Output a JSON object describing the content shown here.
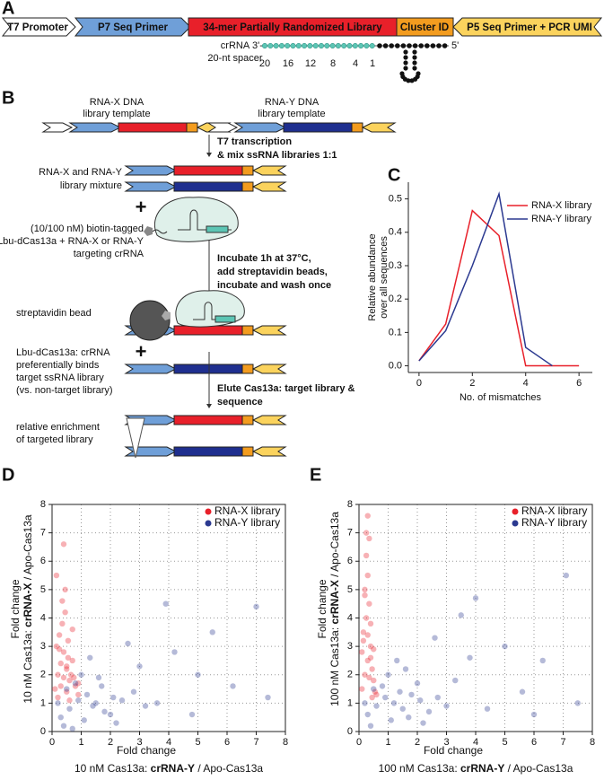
{
  "panels": [
    "A",
    "B",
    "C",
    "D",
    "E"
  ],
  "construct": {
    "segments": [
      "T7 Promoter",
      "P7 Seq Primer",
      "34-mer Partially Randomized Library",
      "Cluster ID",
      "P5 Seq Primer + PCR UMI"
    ],
    "crrna": [
      "crRNA",
      "20-nt spacer"
    ],
    "three_prime": "3'-",
    "five_prime": "5'",
    "spacer_positions": [
      20,
      16,
      12,
      8,
      4,
      1
    ]
  },
  "workflow": {
    "templates": [
      [
        "RNA-X DNA",
        "library template"
      ],
      [
        "RNA-Y DNA",
        "library template"
      ]
    ],
    "steps": [
      [
        "T7 transcription",
        "& mix ssRNA libraries 1:1"
      ],
      [
        "Incubate 1h at 37°C,",
        "add streptavidin beads,",
        "incubate and wash once"
      ],
      [
        "Elute Cas13a: target library &",
        "sequence"
      ]
    ],
    "notes": [
      [
        "RNA-X and RNA-Y",
        "library mixture"
      ],
      [
        "(10/100 nM) biotin-tagged",
        "Lbu-dCas13a + RNA-X or RNA-Y",
        "targeting crRNA"
      ],
      [
        "streptavidin bead"
      ],
      [
        "Lbu-dCas13a: crRNA",
        "preferentially binds",
        "target ssRNA library",
        "(vs. non-target library)"
      ],
      [
        "relative enrichment",
        "of targeted library"
      ]
    ],
    "plus": [
      "+",
      "+"
    ]
  },
  "chart_data": [
    {
      "type": "line",
      "xlabel": "No. of mismatches",
      "ylabel": [
        "Relative abundance",
        "over all sequences"
      ],
      "x": [
        0,
        1,
        2,
        3,
        4,
        5,
        6
      ],
      "series": [
        {
          "name": "RNA-X library",
          "color": "#e8202a",
          "values": [
            0.015,
            0.125,
            0.465,
            0.39,
            0.0,
            0.0,
            0.0
          ]
        },
        {
          "name": "RNA-Y library",
          "color": "#2b3990",
          "values": [
            0.015,
            0.105,
            0.3,
            0.515,
            0.055,
            0.0,
            null
          ]
        }
      ],
      "xlim": [
        -0.4,
        6.5
      ],
      "ylim": [
        -0.02,
        0.55
      ],
      "xticks": [
        0,
        2,
        4,
        6
      ],
      "yticks": [
        {
          "value": 0,
          "label": "0.0"
        },
        0.1,
        0.2,
        0.3,
        0.4,
        0.5
      ],
      "legend": "upper right"
    },
    {
      "type": "scatter",
      "xlabel": "Fold change",
      "xlabel2": [
        "10 nM  Cas13a: ",
        "crRNA-Y",
        " / Apo-Cas13a"
      ],
      "ylabel": "Fold change",
      "ylabel2": [
        "10 nM  Cas13a: ",
        "crRNA-X",
        " / Apo-Cas13a"
      ],
      "series": [
        {
          "name": "RNA-X library",
          "color": "#e8202a",
          "x": [
            0.1,
            0.2,
            0.3,
            0.4,
            0.5,
            0.6,
            0.7,
            0.8,
            0.9,
            0.15,
            0.25,
            0.35,
            0.45,
            0.55,
            0.65,
            0.75,
            0.2,
            0.3,
            0.4,
            0.5,
            0.6,
            0.35,
            0.45,
            0.25,
            0.55,
            0.7,
            0.9,
            0.4,
            0.15,
            0.5
          ],
          "y": [
            1.5,
            2.0,
            2.4,
            2.8,
            2.2,
            1.8,
            2.5,
            1.6,
            1.3,
            3.0,
            3.4,
            3.8,
            4.2,
            2.6,
            2.0,
            1.9,
            1.2,
            1.6,
            1.9,
            1.4,
            1.1,
            4.6,
            5.0,
            2.9,
            3.2,
            3.6,
            1.7,
            6.6,
            5.5,
            2.3
          ]
        },
        {
          "name": "RNA-Y library",
          "color": "#2b3990",
          "x": [
            0.3,
            0.6,
            0.9,
            1.2,
            1.5,
            1.8,
            2.1,
            0.5,
            0.8,
            1.1,
            1.4,
            1.7,
            2.0,
            2.4,
            2.8,
            3.2,
            0.4,
            1.0,
            1.6,
            2.2,
            3.0,
            3.6,
            4.2,
            4.8,
            5.5,
            6.2,
            7.0,
            7.4,
            2.6,
            1.3,
            0.2,
            0.7,
            5.0,
            3.9
          ],
          "y": [
            0.5,
            0.8,
            1.1,
            1.3,
            1.0,
            0.7,
            1.2,
            1.5,
            1.7,
            0.4,
            0.9,
            1.6,
            0.6,
            1.1,
            1.4,
            0.9,
            0.2,
            2.0,
            1.9,
            0.3,
            2.3,
            1.0,
            2.8,
            0.6,
            3.5,
            1.6,
            4.4,
            1.2,
            3.1,
            2.6,
            1.0,
            0.1,
            2.0,
            4.5
          ]
        }
      ],
      "xlim": [
        0,
        8
      ],
      "ylim": [
        0,
        8
      ],
      "xticks": [
        0,
        1,
        2,
        3,
        4,
        5,
        6,
        7,
        8
      ],
      "yticks": [
        0,
        1,
        2,
        3,
        4,
        5,
        6,
        7,
        8
      ],
      "grid": true,
      "legend": "upper right"
    },
    {
      "type": "scatter",
      "xlabel": "Fold change",
      "xlabel2": [
        "100 nM  Cas13a: ",
        "crRNA-Y",
        " / Apo-Cas13a"
      ],
      "ylabel": "Fold change",
      "ylabel2": [
        "100 nM  Cas13a: ",
        "crRNA-X",
        " / Apo-Cas13a"
      ],
      "series": [
        {
          "name": "RNA-X library",
          "color": "#e8202a",
          "x": [
            0.1,
            0.2,
            0.3,
            0.4,
            0.5,
            0.15,
            0.25,
            0.35,
            0.45,
            0.55,
            0.2,
            0.3,
            0.4,
            0.1,
            0.25,
            0.35,
            0.45,
            0.3,
            0.2,
            0.4,
            0.15,
            0.35,
            0.5,
            0.6,
            0.3,
            0.25
          ],
          "y": [
            1.5,
            2.0,
            2.5,
            3.0,
            1.8,
            3.5,
            4.0,
            4.5,
            2.2,
            1.4,
            5.0,
            5.5,
            3.8,
            2.8,
            6.2,
            6.8,
            1.2,
            7.6,
            4.8,
            2.6,
            3.2,
            1.9,
            2.9,
            1.3,
            3.4,
            7.0
          ]
        },
        {
          "name": "RNA-Y library",
          "color": "#2b3990",
          "x": [
            0.3,
            0.6,
            0.9,
            1.2,
            1.5,
            1.8,
            2.1,
            2.4,
            0.5,
            0.8,
            1.1,
            1.4,
            1.7,
            2.0,
            2.7,
            3.0,
            0.4,
            1.0,
            1.6,
            2.2,
            3.3,
            3.8,
            4.4,
            5.0,
            5.6,
            6.3,
            7.1,
            7.5,
            2.6,
            1.3,
            0.2,
            4.0,
            6.0,
            3.5
          ],
          "y": [
            0.6,
            0.9,
            1.2,
            1.0,
            0.8,
            1.3,
            1.1,
            0.7,
            1.5,
            1.6,
            0.4,
            1.4,
            0.5,
            1.7,
            1.2,
            0.9,
            0.2,
            2.0,
            2.2,
            0.3,
            1.8,
            2.6,
            0.8,
            3.0,
            1.4,
            2.5,
            5.5,
            1.0,
            3.3,
            2.5,
            1.0,
            4.7,
            0.6,
            4.1
          ]
        }
      ],
      "xlim": [
        0,
        8
      ],
      "ylim": [
        0,
        8
      ],
      "xticks": [
        0,
        1,
        2,
        3,
        4,
        5,
        6,
        7,
        8
      ],
      "yticks": [
        0,
        1,
        2,
        3,
        4,
        5,
        6,
        7,
        8
      ],
      "grid": true,
      "legend": "upper right"
    }
  ]
}
